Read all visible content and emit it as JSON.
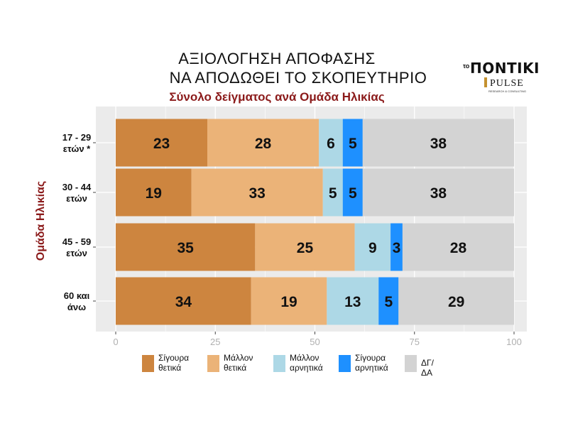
{
  "title_line1": "ΑΞΙΟΛΟΓΗΣΗ ΑΠΟΦΑΣΗΣ",
  "title_line2": "ΝΑ ΑΠΟΔΩΘΕΙ ΤΟ ΣΚΟΠΕΥΤΗΡΙΟ",
  "subtitle": "Σύνολο δείγματος ανά Ομάδα Ηλικίας",
  "logo": {
    "prefix": "το",
    "name": "ΠΟΝΤΙΚΙ",
    "partner": "PULSE",
    "partner_tagline": "RESEARCH & CONSULTING"
  },
  "colors": {
    "panel_bg": "#ebebeb",
    "gridline": "#ffffff",
    "tick_text": "#b0b0b0",
    "ylabel": "#8b1a1a"
  },
  "chart_data": {
    "type": "bar",
    "orientation": "horizontal",
    "stacked": true,
    "ylabel": "Ομάδα Ηλικίας",
    "xlabel": "",
    "xlim": [
      0,
      100
    ],
    "xticks": [
      0,
      25,
      50,
      75,
      100
    ],
    "grid": true,
    "legend_position": "bottom",
    "categories": [
      "17 - 29\nετών *",
      "30 - 44\nετών",
      "45 - 59\nετών",
      "60 και\nάνω"
    ],
    "series": [
      {
        "name": "Σίγουρα\nθετικά",
        "color": "#cd853f",
        "values": [
          23,
          19,
          35,
          34
        ]
      },
      {
        "name": "Μάλλον\nθετικά",
        "color": "#ebb378",
        "values": [
          28,
          33,
          25,
          19
        ]
      },
      {
        "name": "Μάλλον\nαρνητικά",
        "color": "#add8e6",
        "values": [
          6,
          5,
          9,
          13
        ]
      },
      {
        "name": "Σίγουρα\nαρνητικά",
        "color": "#1e90ff",
        "values": [
          5,
          5,
          3,
          5
        ]
      },
      {
        "name": "ΔΓ/ΔΑ",
        "color": "#d3d3d3",
        "values": [
          38,
          38,
          28,
          29
        ]
      }
    ]
  }
}
